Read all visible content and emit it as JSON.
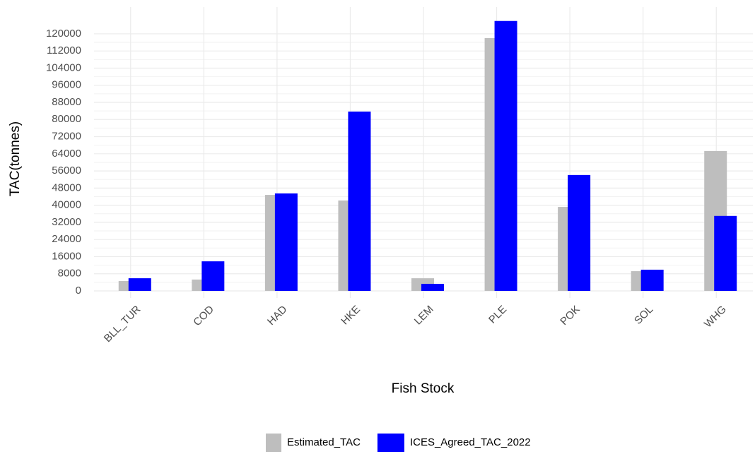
{
  "chart_data": {
    "type": "bar",
    "x_label": "Fish Stock",
    "y_label": "TAC(tonnes)",
    "categories": [
      "BLL_TUR",
      "COD",
      "HAD",
      "HKE",
      "LEM",
      "PLE",
      "POK",
      "SOL",
      "WHG"
    ],
    "series": [
      {
        "name": "Estimated_TAC",
        "color": "#bebebe",
        "values": [
          4600,
          5300,
          44800,
          42200,
          5900,
          118000,
          39200,
          9200,
          65300
        ]
      },
      {
        "name": "ICES_Agreed_TAC_2022",
        "color": "#0000ff",
        "values": [
          5900,
          13800,
          45500,
          83700,
          3300,
          126000,
          54100,
          9900,
          35000
        ]
      }
    ],
    "ylim": [
      -3300,
      132500
    ],
    "yticks": [
      0,
      8000,
      16000,
      24000,
      32000,
      40000,
      48000,
      56000,
      64000,
      72000,
      80000,
      88000,
      96000,
      104000,
      112000,
      120000
    ],
    "grid": true,
    "legend": "bottom"
  }
}
